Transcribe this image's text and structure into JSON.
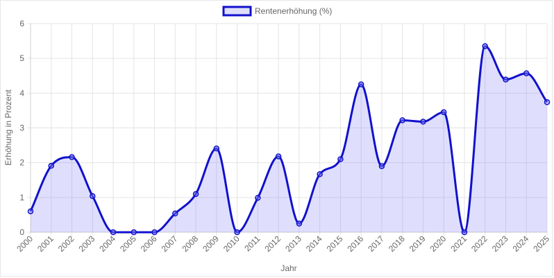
{
  "chart_data": {
    "type": "line",
    "title": "",
    "xlabel": "Jahr",
    "ylabel": "Erhöhung in Prozent",
    "ylim": [
      0,
      6
    ],
    "yticks": [
      0,
      1,
      2,
      3,
      4,
      5,
      6
    ],
    "grid": true,
    "legend_position": "top-center",
    "categories": [
      "2000",
      "2001",
      "2002",
      "2003",
      "2004",
      "2005",
      "2006",
      "2007",
      "2008",
      "2009",
      "2010",
      "2011",
      "2012",
      "2013",
      "2014",
      "2015",
      "2016",
      "2017",
      "2018",
      "2019",
      "2020",
      "2021",
      "2022",
      "2023",
      "2024",
      "2025"
    ],
    "series": [
      {
        "name": "Rentenerhöhung (%)",
        "color": "#1111cc",
        "fill": "rgba(110,110,245,0.22)",
        "values": [
          0.6,
          1.91,
          2.16,
          1.04,
          0,
          0,
          0,
          0.54,
          1.1,
          2.41,
          0,
          0.99,
          2.18,
          0.25,
          1.67,
          2.1,
          4.25,
          1.9,
          3.22,
          3.18,
          3.45,
          0,
          5.35,
          4.39,
          4.57,
          3.74
        ]
      }
    ]
  }
}
